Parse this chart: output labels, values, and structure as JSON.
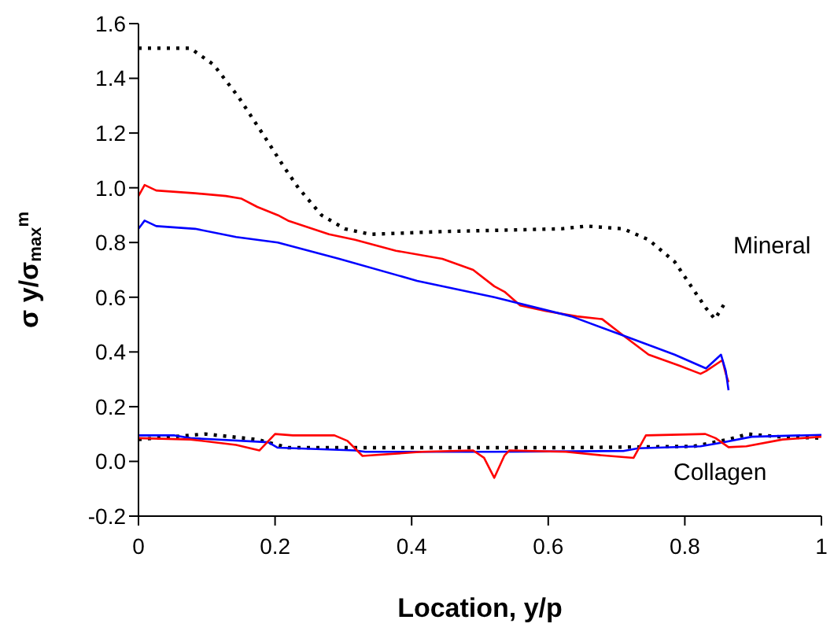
{
  "chart_data": {
    "type": "line",
    "xlabel": "Location, y/p",
    "ylabel": "σ y/σ$_{max}$$^{m}$",
    "xlim": [
      0,
      1
    ],
    "xticks": [
      0,
      0.2,
      0.4,
      0.6,
      0.8,
      1
    ],
    "ylim": [
      -0.2,
      1.6
    ],
    "yticks": [
      -0.2,
      {
        "value": 0,
        "label": "0.0"
      },
      0.2,
      0.4,
      0.6,
      0.8,
      {
        "value": 1,
        "label": "1.0"
      },
      1.2,
      1.4,
      1.6
    ],
    "grid": false,
    "legend": false,
    "marker": "none",
    "annotations": [
      "Mineral",
      "Collagen"
    ],
    "series": [
      {
        "color": "#000000",
        "line_style": "dotted",
        "x": [
          0,
          0.076,
          0.11,
          0.147,
          0.189,
          0.212,
          0.234,
          0.268,
          0.302,
          0.34,
          0.445,
          0.619,
          0.656,
          0.71,
          0.747,
          0.785,
          0.812,
          0.831,
          0.844,
          0.859
        ],
        "values": [
          1.51,
          1.51,
          1.45,
          1.33,
          1.17,
          1.08,
          1.0,
          0.9,
          0.85,
          0.83,
          0.84,
          0.85,
          0.86,
          0.85,
          0.81,
          0.73,
          0.63,
          0.56,
          0.52,
          0.58
        ]
      },
      {
        "color": "#ff0000",
        "line_style": "solid",
        "x": [
          0,
          0.009,
          0.026,
          0.083,
          0.128,
          0.151,
          0.174,
          0.204,
          0.219,
          0.279,
          0.317,
          0.377,
          0.445,
          0.49,
          0.521,
          0.536,
          0.559,
          0.596,
          0.642,
          0.679,
          0.71,
          0.747,
          0.792,
          0.823,
          0.831,
          0.855,
          0.86,
          0.864
        ],
        "values": [
          0.97,
          1.01,
          0.99,
          0.98,
          0.97,
          0.96,
          0.93,
          0.9,
          0.88,
          0.83,
          0.81,
          0.77,
          0.74,
          0.7,
          0.64,
          0.62,
          0.57,
          0.55,
          0.53,
          0.52,
          0.46,
          0.39,
          0.35,
          0.32,
          0.33,
          0.37,
          0.32,
          0.29
        ]
      },
      {
        "color": "#0000ff",
        "line_style": "solid",
        "x": [
          0,
          0.009,
          0.026,
          0.083,
          0.143,
          0.204,
          0.294,
          0.408,
          0.521,
          0.634,
          0.71,
          0.785,
          0.831,
          0.853,
          0.86,
          0.864
        ],
        "values": [
          0.85,
          0.88,
          0.86,
          0.85,
          0.82,
          0.8,
          0.74,
          0.66,
          0.6,
          0.53,
          0.46,
          0.39,
          0.34,
          0.39,
          0.33,
          0.26
        ]
      },
      {
        "color": "#000000",
        "line_style": "dotted",
        "x": [
          0,
          0.098,
          0.174,
          0.219,
          0.317,
          0.445,
          0.626,
          0.813,
          0.863,
          0.893,
          0.938,
          1
        ],
        "values": [
          0.08,
          0.1,
          0.08,
          0.05,
          0.05,
          0.05,
          0.05,
          0.055,
          0.08,
          0.1,
          0.09,
          0.085
        ]
      },
      {
        "color": "#0000ff",
        "line_style": "solid",
        "x": [
          0,
          0.053,
          0.076,
          0.19,
          0.204,
          0.317,
          0.332,
          0.521,
          0.71,
          0.732,
          0.823,
          0.853,
          0.898,
          1
        ],
        "values": [
          0.095,
          0.095,
          0.085,
          0.07,
          0.05,
          0.04,
          0.035,
          0.035,
          0.038,
          0.048,
          0.055,
          0.068,
          0.09,
          0.097
        ]
      },
      {
        "color": "#ff0000",
        "line_style": "solid",
        "x": [
          0,
          0.076,
          0.143,
          0.177,
          0.2,
          0.226,
          0.287,
          0.306,
          0.328,
          0.34,
          0.415,
          0.49,
          0.506,
          0.521,
          0.536,
          0.543,
          0.626,
          0.679,
          0.725,
          0.743,
          0.83,
          0.845,
          0.864,
          0.89,
          0.943,
          1
        ],
        "values": [
          0.085,
          0.08,
          0.06,
          0.04,
          0.1,
          0.095,
          0.095,
          0.075,
          0.02,
          0.022,
          0.035,
          0.04,
          0.013,
          -0.06,
          0.022,
          0.04,
          0.035,
          0.022,
          0.013,
          0.095,
          0.1,
          0.085,
          0.052,
          0.055,
          0.08,
          0.09
        ]
      }
    ]
  }
}
